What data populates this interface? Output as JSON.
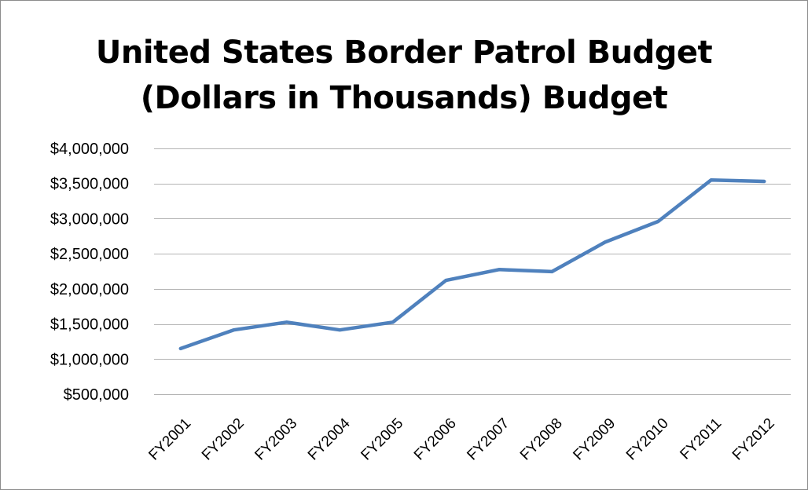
{
  "chart_data": {
    "type": "line",
    "title": "United States Border Patrol Budget",
    "subtitle": "(Dollars in Thousands) Budget",
    "xlabel": "",
    "ylabel": "",
    "categories": [
      "FY2001",
      "FY2002",
      "FY2003",
      "FY2004",
      "FY2005",
      "FY2006",
      "FY2007",
      "FY2008",
      "FY2009",
      "FY2010",
      "FY2011",
      "FY2012"
    ],
    "series": [
      {
        "values": [
          1150000,
          1415000,
          1525000,
          1415000,
          1525000,
          2120000,
          2275000,
          2245000,
          2665000,
          2960000,
          3550000,
          3530000
        ]
      }
    ],
    "y_ticks": [
      "$500,000",
      "$1,000,000",
      "$1,500,000",
      "$2,000,000",
      "$2,500,000",
      "$3,000,000",
      "$3,500,000",
      "$4,000,000"
    ],
    "y_tick_values": [
      500000,
      1000000,
      1500000,
      2000000,
      2500000,
      3000000,
      3500000,
      4000000
    ],
    "ylim": [
      500000,
      4000000
    ],
    "grid": true,
    "legend": "none",
    "line_color": "#4f81bd"
  }
}
